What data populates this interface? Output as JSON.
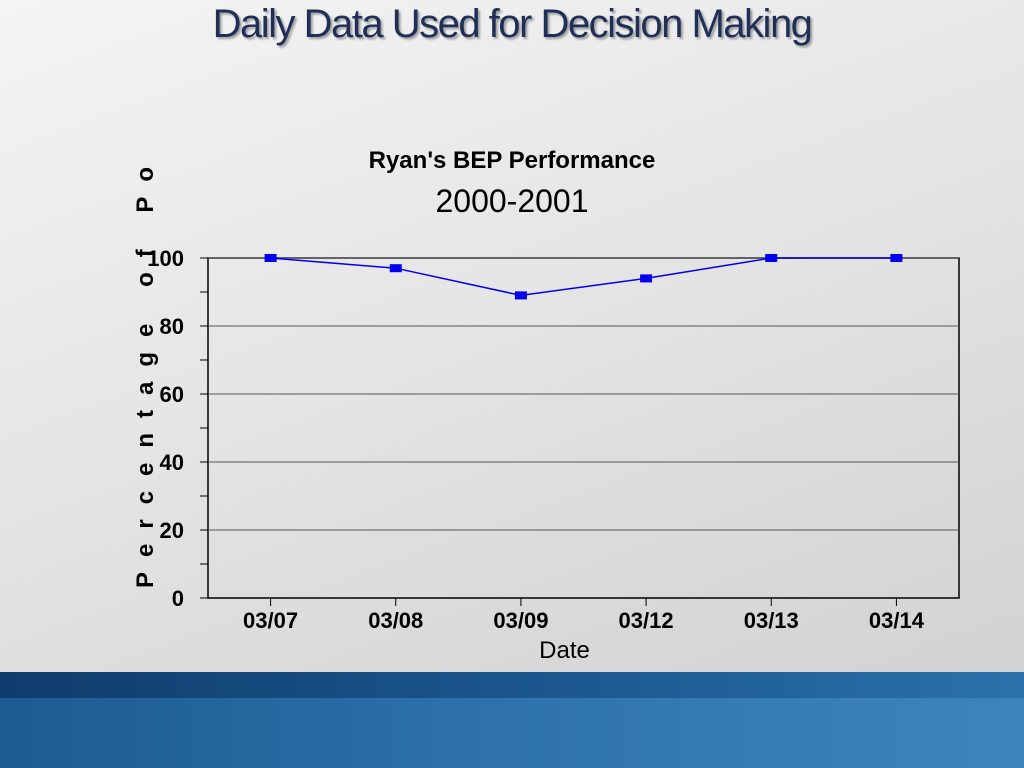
{
  "slide": {
    "title": "Daily Data Used for Decision Making"
  },
  "chart_data": {
    "type": "line",
    "title": "Ryan's BEP Performance",
    "subtitle": "2000-2001",
    "xlabel": "Date",
    "ylabel": "Percentage of Po",
    "categories": [
      "03/07",
      "03/08",
      "03/09",
      "03/12",
      "03/13",
      "03/14"
    ],
    "series": [
      {
        "values": [
          100,
          97,
          89,
          94,
          100,
          100
        ],
        "color": "#0000ee"
      }
    ],
    "ylim": [
      0,
      100
    ],
    "yticks": [
      0,
      20,
      40,
      60,
      80,
      100
    ],
    "grid": true,
    "legend": "none"
  }
}
